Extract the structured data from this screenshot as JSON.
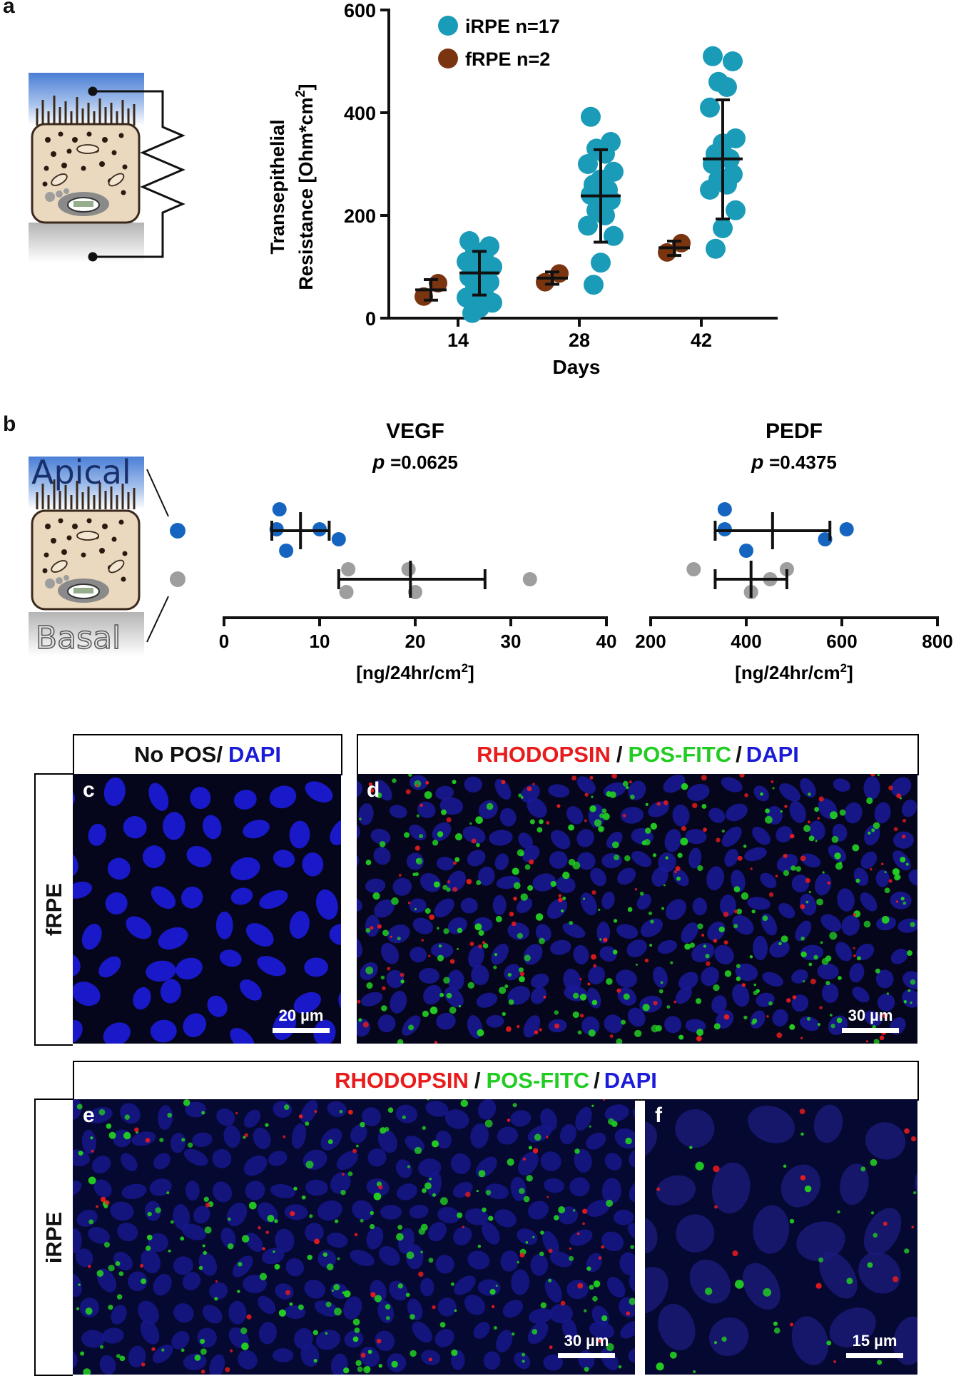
{
  "panels": {
    "a": {
      "label": "a",
      "chart_data": {
        "type": "scatter",
        "xlabel": "Days",
        "ylabel_line1": "Transepithelial",
        "ylabel_line2": "Resistance [Ohm*cm",
        "ylabel_sup": "2",
        "ylabel_end": "]",
        "x_ticks": [
          "14",
          "28",
          "42"
        ],
        "y_ticks": [
          "0",
          "200",
          "400",
          "600"
        ],
        "ylim": [
          0,
          600
        ],
        "legend_position": "top-left",
        "series": [
          {
            "name": "iRPE n=17",
            "color": "#1a9bb8",
            "groups": [
              {
                "day": "14",
                "values": [
                  150,
                  140,
                  130,
                  120,
                  110,
                  100,
                  95,
                  90,
                  85,
                  80,
                  70,
                  60,
                  50,
                  40,
                  30,
                  20,
                  10
                ],
                "mean": 88,
                "sd_low": 45,
                "sd_high": 130
              },
              {
                "day": "28",
                "values": [
                  392,
                  343,
                  330,
                  320,
                  300,
                  285,
                  270,
                  260,
                  250,
                  240,
                  230,
                  210,
                  200,
                  180,
                  160,
                  108,
                  65
                ],
                "mean": 238,
                "sd_low": 148,
                "sd_high": 328
              },
              {
                "day": "42",
                "values": [
                  510,
                  500,
                  460,
                  450,
                  410,
                  350,
                  340,
                  320,
                  310,
                  300,
                  280,
                  270,
                  260,
                  250,
                  210,
                  175,
                  135
                ],
                "mean": 310,
                "sd_low": 193,
                "sd_high": 425
              }
            ]
          },
          {
            "name": "fRPE n=2",
            "color": "#7a3510",
            "groups": [
              {
                "day": "14",
                "values": [
                  42,
                  68
                ],
                "mean": 55,
                "sd_low": 35,
                "sd_high": 75
              },
              {
                "day": "28",
                "values": [
                  70,
                  87
                ],
                "mean": 78,
                "sd_low": 66,
                "sd_high": 90
              },
              {
                "day": "42",
                "values": [
                  128,
                  146
                ],
                "mean": 137,
                "sd_low": 122,
                "sd_high": 150
              }
            ]
          }
        ]
      }
    },
    "b": {
      "label": "b",
      "apical_label": "Apical",
      "basal_label": "Basal",
      "apical_color": "#1565c0",
      "basal_color": "#9e9e9e",
      "unit_main": "[ng/24hr/cm",
      "unit_sup": "2",
      "unit_end": "]",
      "chart_data": [
        {
          "type": "scatter",
          "title": "VEGF",
          "p_label": "p",
          "p_value": "=0.0625",
          "xlim": [
            0,
            40
          ],
          "x_ticks": [
            "0",
            "10",
            "20",
            "30",
            "40"
          ],
          "apical": {
            "values": [
              5.8,
              6.5,
              5.5,
              10.0,
              12.0
            ],
            "mean": 8.0,
            "sd_low": 5.0,
            "sd_high": 11.0
          },
          "basal": {
            "values": [
              13.0,
              12.8,
              19.3,
              20.0,
              32.0
            ],
            "mean": 19.5,
            "sd_low": 12.0,
            "sd_high": 27.3
          }
        },
        {
          "type": "scatter",
          "title": "PEDF",
          "p_label": "p",
          "p_value": "=0.4375",
          "xlim": [
            200,
            800
          ],
          "x_ticks": [
            "200",
            "400",
            "600",
            "800"
          ],
          "apical": {
            "values": [
              355,
              400,
              355,
              610,
              565
            ],
            "mean": 455,
            "sd_low": 335,
            "sd_high": 575
          },
          "basal": {
            "values": [
              290,
              410,
              485,
              410,
              450
            ],
            "mean": 410,
            "sd_low": 335,
            "sd_high": 485
          }
        }
      ]
    },
    "micrographs": {
      "top_left_header": {
        "no_pos": "No POS/",
        "dapi": "DAPI"
      },
      "top_right_header": {
        "rhodopsin": "RHODOPSIN",
        "sep1": "/",
        "pos_fitc": "POS-FITC",
        "sep2": "/",
        "dapi": "DAPI"
      },
      "bottom_header": {
        "rhodopsin": "RHODOPSIN",
        "sep1": "/",
        "pos_fitc": "POS-FITC",
        "sep2": "/",
        "dapi": "DAPI"
      },
      "row_labels": {
        "top": "fRPE",
        "bottom": "iRPE"
      },
      "colors": {
        "red": "#e81c1c",
        "green": "#22cc22",
        "blue": "#1b1bd8"
      },
      "images": {
        "c": {
          "label": "c",
          "scale": "20 µm"
        },
        "d": {
          "label": "d",
          "scale": "30 µm"
        },
        "e": {
          "label": "e",
          "scale": "30 µm"
        },
        "f": {
          "label": "f",
          "scale": "15 µm"
        }
      }
    }
  }
}
